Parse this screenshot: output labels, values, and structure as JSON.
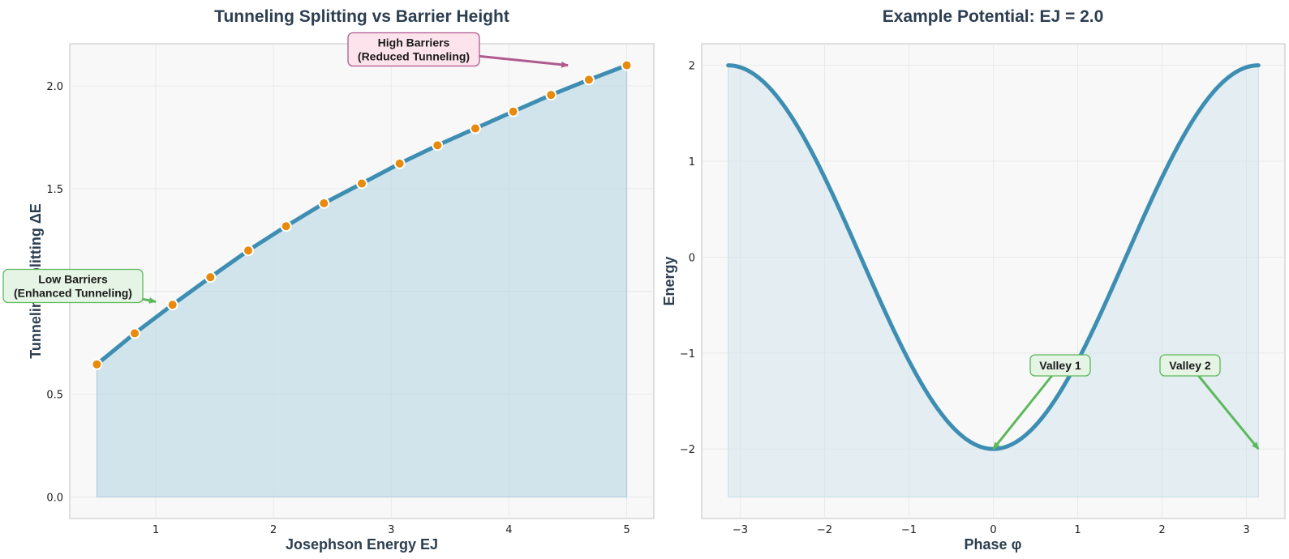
{
  "chart_data": [
    {
      "type": "line",
      "title": "Tunneling Splitting vs Barrier Height",
      "xlabel": "Josephson Energy EJ",
      "ylabel": "Tunneling Splitting ΔE",
      "xlim": [
        0.27,
        5.23
      ],
      "ylim": [
        -0.105,
        2.205
      ],
      "xticks": [
        1,
        2,
        3,
        4,
        5
      ],
      "yticks": [
        0.0,
        0.5,
        1.0,
        1.5,
        2.0
      ],
      "ytick_labels": [
        "0.0",
        "0.5",
        "1.0",
        "1.5",
        "2.0"
      ],
      "grid": true,
      "fill_to_zero": true,
      "line_color": "#3d8eb2",
      "marker_color": "#e88a0c",
      "series": [
        {
          "name": "",
          "x": [
            0.5,
            0.8214,
            1.1429,
            1.4643,
            1.7857,
            2.1071,
            2.4286,
            2.75,
            3.0714,
            3.3929,
            3.7143,
            4.0357,
            4.3571,
            4.6786,
            5.0
          ],
          "y": [
            0.645,
            0.796,
            0.935,
            1.069,
            1.199,
            1.317,
            1.429,
            1.525,
            1.622,
            1.711,
            1.793,
            1.875,
            1.956,
            2.03,
            2.1
          ]
        }
      ],
      "annotations": [
        {
          "lines": [
            "High Barriers",
            "(Reduced Tunneling)"
          ],
          "arrow_to": [
            4.5,
            2.1
          ],
          "style": "pink"
        },
        {
          "lines": [
            "Low Barriers",
            "(Enhanced Tunneling)"
          ],
          "arrow_to": [
            1.0,
            0.95
          ],
          "style": "green"
        }
      ]
    },
    {
      "type": "line",
      "title": "Example Potential: EJ = 2.0",
      "xlabel": "Phase φ",
      "ylabel": "Energy",
      "xlim": [
        -3.456,
        3.456
      ],
      "ylim": [
        -2.725,
        2.225
      ],
      "xticks": [
        -3,
        -2,
        -1,
        0,
        1,
        2,
        3
      ],
      "xtick_labels": [
        "−3",
        "−2",
        "−1",
        "0",
        "1",
        "2",
        "3"
      ],
      "yticks": [
        -2,
        -1,
        0,
        1,
        2
      ],
      "ytick_labels": [
        "−2",
        "−1",
        "0",
        "1",
        "2"
      ],
      "grid": true,
      "fill_base": -2.5,
      "line_color": "#3d8eb2",
      "series": [
        {
          "name": "",
          "x_range": [
            -3.14159,
            3.14159
          ],
          "formula": "-2.0*cos(x)",
          "x": [
            -3.1416,
            -2.5,
            -2.0,
            -1.5,
            -1.0,
            -0.5,
            0,
            0.5,
            1.0,
            1.5,
            2.0,
            2.5,
            3.1416
          ],
          "y": [
            2.0,
            1.602,
            0.832,
            -0.141,
            -1.081,
            -1.755,
            -2.0,
            -1.755,
            -1.081,
            -0.141,
            0.832,
            1.602,
            2.0
          ]
        }
      ],
      "annotations": [
        {
          "lines": [
            "Valley 1"
          ],
          "arrow_to": [
            0.0,
            -2.0
          ],
          "style": "green"
        },
        {
          "lines": [
            "Valley 2"
          ],
          "arrow_to": [
            3.1416,
            -2.0
          ],
          "style": "green"
        }
      ]
    }
  ]
}
